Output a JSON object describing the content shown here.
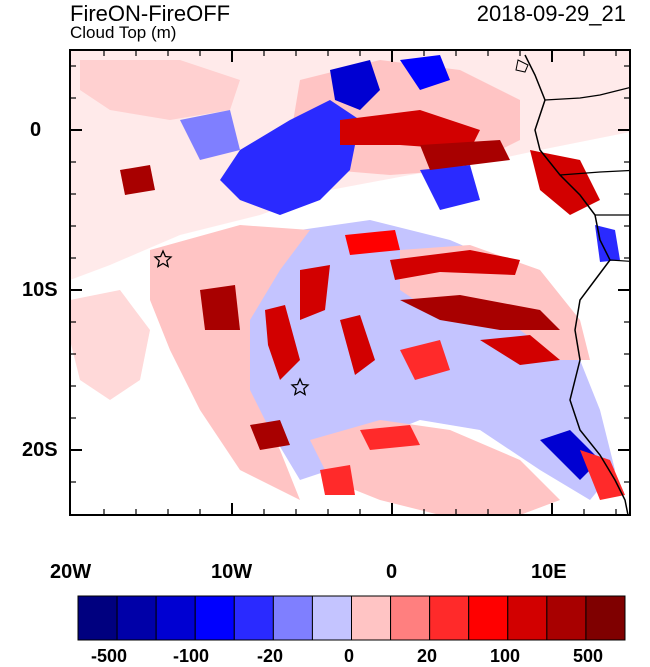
{
  "header": {
    "title": "FireON-FireOFF",
    "subtitle": "Cloud Top (m)",
    "timestamp": "2018-09-29_21"
  },
  "axes": {
    "lat_labels": [
      "0",
      "10S",
      "20S"
    ],
    "lon_labels": [
      "20W",
      "10W",
      "0",
      "10E"
    ]
  },
  "colorbar": {
    "colors": [
      "#00007f",
      "#0000a8",
      "#0000d2",
      "#0000ff",
      "#2a2aff",
      "#7f7fff",
      "#c4c4ff",
      "#ffc4c4",
      "#ff7f7f",
      "#ff2a2a",
      "#ff0000",
      "#d20000",
      "#a80000",
      "#7f0000"
    ],
    "labels": [
      "-500",
      "-100",
      "-20",
      "0",
      "20",
      "100",
      "500"
    ]
  },
  "markers": {
    "symbol": "star",
    "count": 2
  }
}
